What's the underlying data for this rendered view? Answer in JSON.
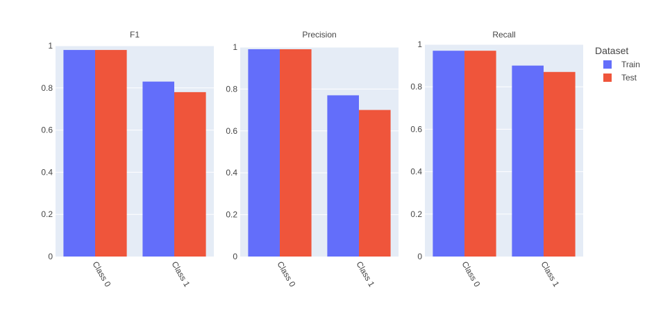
{
  "chart_data": {
    "type": "bar",
    "layout": "grouped-subplots",
    "ylim": [
      0,
      1
    ],
    "yticks": [
      "0",
      "0.2",
      "0.4",
      "0.6",
      "0.8",
      "1"
    ],
    "categories": [
      "Class 0",
      "Class 1"
    ],
    "legend": {
      "title": "Dataset",
      "placement": "right",
      "items": [
        {
          "name": "Train",
          "color": "#636EFA"
        },
        {
          "name": "Test",
          "color": "#EF553B"
        }
      ]
    },
    "plot_background": "#E5ECF6",
    "grid": true,
    "panels": [
      {
        "title": "F1",
        "series": [
          {
            "name": "Train",
            "values": [
              0.98,
              0.83
            ]
          },
          {
            "name": "Test",
            "values": [
              0.98,
              0.78
            ]
          }
        ]
      },
      {
        "title": "Precision",
        "series": [
          {
            "name": "Train",
            "values": [
              0.99,
              0.77
            ]
          },
          {
            "name": "Test",
            "values": [
              0.99,
              0.7
            ]
          }
        ]
      },
      {
        "title": "Recall",
        "series": [
          {
            "name": "Train",
            "values": [
              0.97,
              0.9
            ]
          },
          {
            "name": "Test",
            "values": [
              0.97,
              0.87
            ]
          }
        ]
      }
    ]
  }
}
